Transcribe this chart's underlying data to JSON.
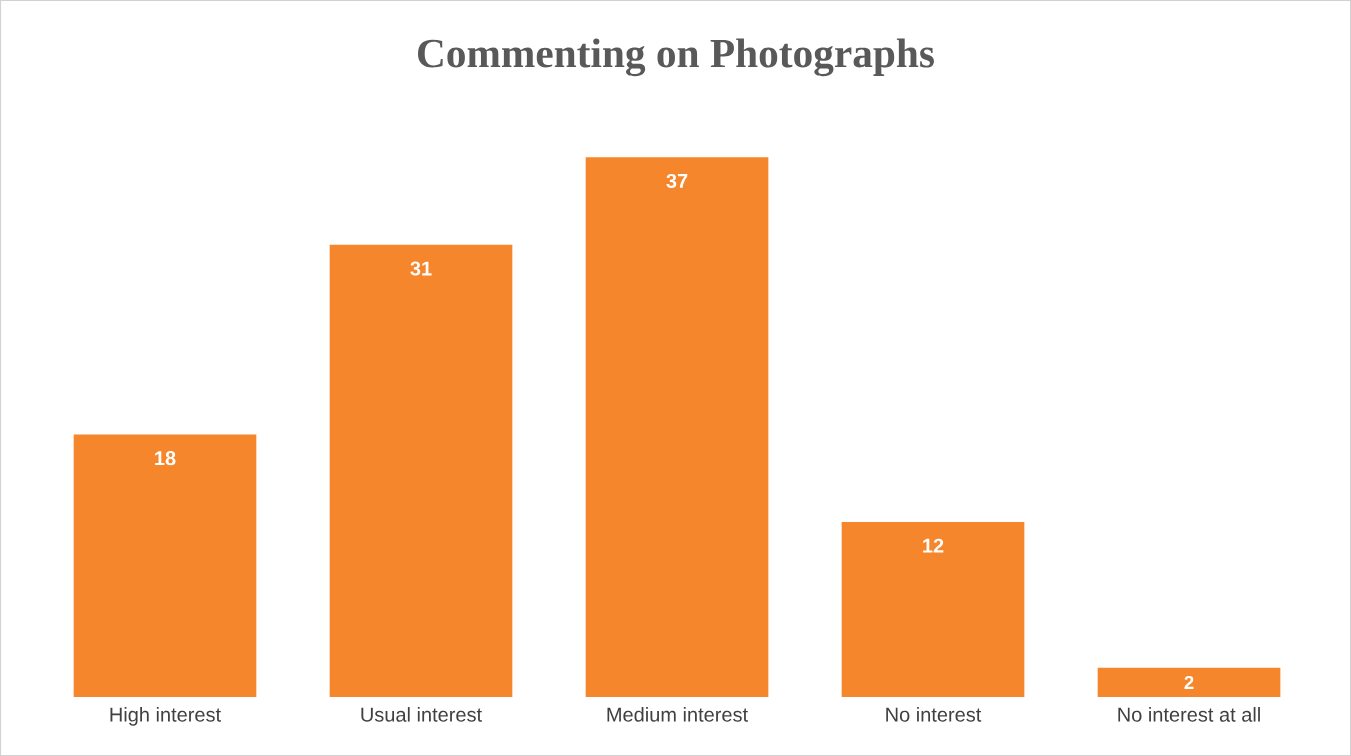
{
  "chart_data": {
    "type": "bar",
    "title": "Commenting on Photographs",
    "categories": [
      "High interest",
      "Usual interest",
      "Medium interest",
      "No interest",
      "No interest at all"
    ],
    "values": [
      18,
      31,
      37,
      12,
      2
    ],
    "color": "#f5862c",
    "data_labels": true
  }
}
